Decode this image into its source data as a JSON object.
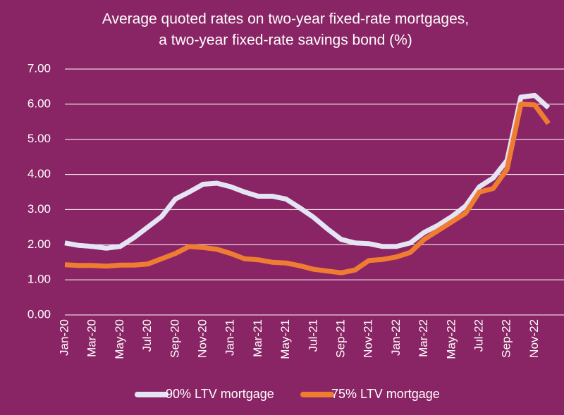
{
  "chart_data": {
    "type": "line",
    "title": [
      "Average quoted rates on two-year fixed-rate mortgages,",
      "a two-year fixed-rate savings bond  (%)"
    ],
    "categories": [
      "Jan-20",
      null,
      "Mar-20",
      null,
      "May-20",
      null,
      "Jul-20",
      null,
      "Sep-20",
      null,
      "Nov-20",
      null,
      "Jan-21",
      null,
      "Mar-21",
      null,
      "May-21",
      null,
      "Jul-21",
      null,
      "Sep-21",
      null,
      "Nov-21",
      null,
      "Jan-22",
      null,
      "Mar-22",
      null,
      "May-22",
      null,
      "Jul-22",
      null,
      "Sep-22",
      null,
      "Nov-22",
      null
    ],
    "series": [
      {
        "name": "90% LTV mortgage",
        "color": "#e4e4f4",
        "values": [
          2.05,
          1.98,
          1.95,
          1.9,
          1.95,
          2.2,
          2.5,
          2.8,
          3.3,
          3.5,
          3.72,
          3.75,
          3.65,
          3.5,
          3.38,
          3.38,
          3.3,
          3.05,
          2.78,
          2.45,
          2.15,
          2.05,
          2.03,
          1.95,
          1.95,
          2.05,
          2.35,
          2.55,
          2.8,
          3.1,
          3.65,
          3.9,
          4.4,
          6.2,
          6.25,
          5.9
        ]
      },
      {
        "name": "75% LTV mortgage",
        "color": "#ef7d31",
        "values": [
          1.43,
          1.41,
          1.41,
          1.39,
          1.42,
          1.42,
          1.45,
          1.6,
          1.75,
          1.95,
          1.92,
          1.87,
          1.75,
          1.6,
          1.57,
          1.5,
          1.48,
          1.4,
          1.3,
          1.25,
          1.2,
          1.28,
          1.55,
          1.58,
          1.65,
          1.78,
          2.15,
          2.4,
          2.65,
          2.9,
          3.5,
          3.6,
          4.15,
          6.0,
          5.98,
          5.45
        ]
      }
    ],
    "ylim": [
      0,
      7
    ],
    "yticks": [
      {
        "value": 0,
        "label": "0.00"
      },
      {
        "value": 1,
        "label": "1.00"
      },
      {
        "value": 2,
        "label": "2.00"
      },
      {
        "value": 3,
        "label": "3.00"
      },
      {
        "value": 4,
        "label": "4.00"
      },
      {
        "value": 5,
        "label": "5.00"
      },
      {
        "value": 6,
        "label": "6.00"
      },
      {
        "value": 7,
        "label": "7.00"
      }
    ],
    "grid": true,
    "legend": "bottom"
  }
}
